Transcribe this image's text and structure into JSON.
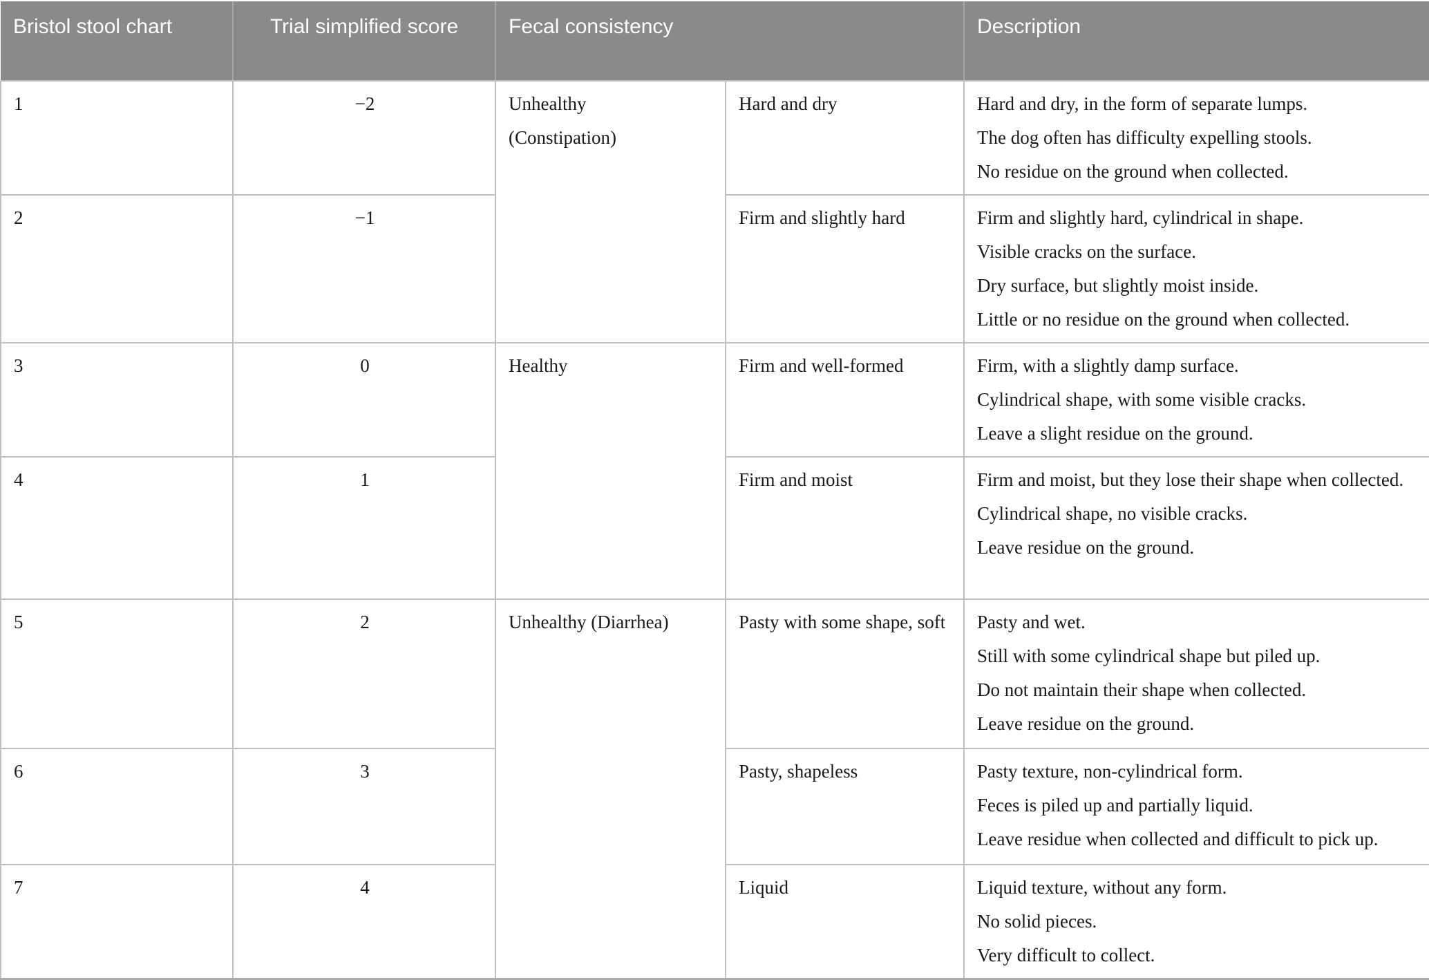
{
  "colors": {
    "header_bg": "#8a8a8a",
    "header_text": "#ffffff",
    "grid_line": "#bfbfbf",
    "body_text": "#1a1a1a"
  },
  "header": {
    "bristol": "Bristol stool chart",
    "score": "Trial simplified score",
    "fecal": "Fecal consistency",
    "description": "Description"
  },
  "rows": [
    {
      "chart": "1",
      "score": "−2",
      "category": "Unhealthy (Constipation)",
      "consistency": "Hard and dry",
      "description": [
        "Hard and dry, in the form of separate lumps.",
        "The dog often has difficulty expelling stools.",
        "No residue on the ground when collected."
      ]
    },
    {
      "chart": "2",
      "score": "−1",
      "consistency": "Firm and slightly hard",
      "description": [
        "Firm and slightly hard, cylindrical in shape.",
        "Visible cracks on the surface.",
        "Dry surface, but slightly moist inside.",
        "Little or no residue on the ground when collected."
      ]
    },
    {
      "chart": "3",
      "score": "0",
      "category": "Healthy",
      "consistency": "Firm and well-formed",
      "description": [
        "Firm, with a slightly damp surface.",
        "Cylindrical shape, with some visible cracks.",
        "Leave a slight residue on the ground."
      ]
    },
    {
      "chart": "4",
      "score": "1",
      "consistency": "Firm and moist",
      "description": [
        "Firm and moist, but they lose their shape when collected.",
        "Cylindrical shape, no visible cracks.",
        "Leave residue on the ground."
      ]
    },
    {
      "chart": "5",
      "score": "2",
      "category": "Unhealthy (Diarrhea)",
      "consistency": "Pasty with some shape, soft",
      "description": [
        "Pasty and wet.",
        "Still with some cylindrical shape but piled up.",
        "Do not maintain their shape when collected.",
        "Leave residue on the ground."
      ]
    },
    {
      "chart": "6",
      "score": "3",
      "consistency": "Pasty, shapeless",
      "description": [
        "Pasty texture, non-cylindrical form.",
        "Feces is piled up and partially liquid.",
        "Leave residue when collected and difficult to pick up."
      ]
    },
    {
      "chart": "7",
      "score": "4",
      "consistency": "Liquid",
      "description": [
        "Liquid texture, without any form.",
        "No solid pieces.",
        "Very difficult to collect."
      ]
    }
  ]
}
